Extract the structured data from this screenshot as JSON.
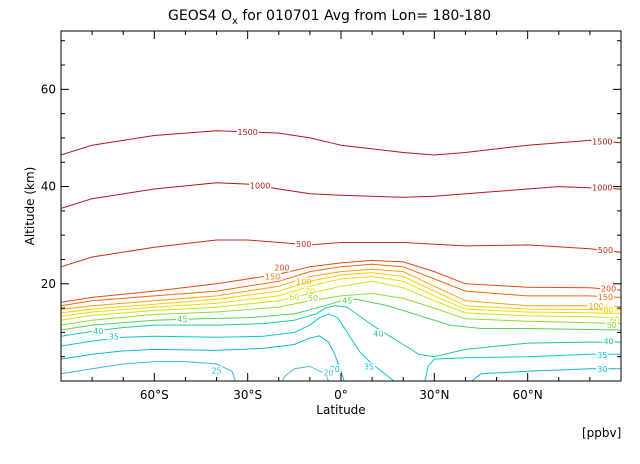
{
  "chart_data": {
    "type": "contour",
    "title_main": "GEOS4 O",
    "title_sub": "x",
    "title_rest": " for 010701 Avg from Lon= 180-180",
    "xlabel": "Latitude",
    "ylabel": "Altitude (km)",
    "units_note": "[ppbv]",
    "xlim": [
      -90,
      90
    ],
    "ylim": [
      0,
      72
    ],
    "x_ticks": [
      {
        "value": -60,
        "label": "60°S"
      },
      {
        "value": -30,
        "label": "30°S"
      },
      {
        "value": 0,
        "label": "0°"
      },
      {
        "value": 30,
        "label": "30°N"
      },
      {
        "value": 60,
        "label": "60°N"
      }
    ],
    "y_ticks": [
      {
        "value": 20,
        "label": "20"
      },
      {
        "value": 40,
        "label": "40"
      },
      {
        "value": 60,
        "label": "60"
      }
    ],
    "contours": [
      {
        "level": 1500,
        "color": "#b01818",
        "points": [
          [
            -90,
            46.5
          ],
          [
            -80,
            48.5
          ],
          [
            -60,
            50.5
          ],
          [
            -40,
            51.5
          ],
          [
            -20,
            51
          ],
          [
            -10,
            50
          ],
          [
            0,
            48.5
          ],
          [
            20,
            47
          ],
          [
            30,
            46.5
          ],
          [
            40,
            47
          ],
          [
            60,
            48.5
          ],
          [
            80,
            49.5
          ],
          [
            90,
            49
          ]
        ],
        "labels": [
          {
            "text": "1500",
            "x": -30,
            "y": 51.2
          },
          {
            "text": "1500",
            "x": 84,
            "y": 49.3
          }
        ]
      },
      {
        "level": 1000,
        "color": "#b01818",
        "points": [
          [
            -90,
            35.5
          ],
          [
            -80,
            37.5
          ],
          [
            -60,
            39.5
          ],
          [
            -40,
            40.8
          ],
          [
            -30,
            40.5
          ],
          [
            -10,
            38.5
          ],
          [
            0,
            38.2
          ],
          [
            20,
            37.8
          ],
          [
            30,
            38
          ],
          [
            50,
            39
          ],
          [
            70,
            40
          ],
          [
            90,
            39.5
          ]
        ],
        "labels": [
          {
            "text": "1000",
            "x": -26,
            "y": 40.2
          },
          {
            "text": "1000",
            "x": 84,
            "y": 39.8
          }
        ]
      },
      {
        "level": 500,
        "color": "#c83018",
        "points": [
          [
            -90,
            23.5
          ],
          [
            -80,
            25.5
          ],
          [
            -60,
            27.5
          ],
          [
            -40,
            29
          ],
          [
            -30,
            29
          ],
          [
            -10,
            28
          ],
          [
            0,
            28.5
          ],
          [
            20,
            28.5
          ],
          [
            40,
            27.8
          ],
          [
            60,
            28
          ],
          [
            80,
            27.2
          ],
          [
            90,
            26.5
          ]
        ],
        "labels": [
          {
            "text": "500",
            "x": -12,
            "y": 28.2
          },
          {
            "text": "500",
            "x": 85,
            "y": 27
          }
        ]
      },
      {
        "level": 200,
        "color": "#e04a12",
        "points": [
          [
            -90,
            16.2
          ],
          [
            -80,
            17.2
          ],
          [
            -60,
            18.5
          ],
          [
            -40,
            20
          ],
          [
            -20,
            22
          ],
          [
            -10,
            23.5
          ],
          [
            0,
            24.3
          ],
          [
            10,
            24.8
          ],
          [
            20,
            24.5
          ],
          [
            30,
            22.5
          ],
          [
            40,
            20
          ],
          [
            60,
            19.3
          ],
          [
            80,
            19.2
          ],
          [
            90,
            18.7
          ]
        ],
        "labels": [
          {
            "text": "200",
            "x": -19,
            "y": 23.3
          },
          {
            "text": "200",
            "x": 86,
            "y": 19
          }
        ]
      },
      {
        "level": 150,
        "color": "#ee6a10",
        "points": [
          [
            -90,
            15.5
          ],
          [
            -80,
            16.5
          ],
          [
            -60,
            17.5
          ],
          [
            -40,
            18.5
          ],
          [
            -20,
            20.5
          ],
          [
            -10,
            22.5
          ],
          [
            0,
            23.5
          ],
          [
            10,
            24
          ],
          [
            20,
            23.5
          ],
          [
            30,
            21
          ],
          [
            40,
            18.5
          ],
          [
            60,
            17.5
          ],
          [
            80,
            17.5
          ],
          [
            90,
            17.2
          ]
        ],
        "labels": [
          {
            "text": "150",
            "x": -22,
            "y": 21.5
          },
          {
            "text": "150",
            "x": 85,
            "y": 17.3
          }
        ]
      },
      {
        "level": 100,
        "color": "#f7a010",
        "points": [
          [
            -90,
            14.7
          ],
          [
            -80,
            15.5
          ],
          [
            -60,
            16.5
          ],
          [
            -40,
            17.5
          ],
          [
            -20,
            19.5
          ],
          [
            -10,
            21.5
          ],
          [
            0,
            22.5
          ],
          [
            10,
            23
          ],
          [
            20,
            22.5
          ],
          [
            30,
            19.5
          ],
          [
            40,
            16.5
          ],
          [
            60,
            15.5
          ],
          [
            80,
            15.5
          ],
          [
            90,
            15.3
          ]
        ],
        "labels": [
          {
            "text": "100",
            "x": -12,
            "y": 20.5
          },
          {
            "text": "100",
            "x": 82,
            "y": 15.4
          }
        ]
      },
      {
        "level": 80,
        "color": "#ffcc00",
        "points": [
          [
            -90,
            14
          ],
          [
            -80,
            14.8
          ],
          [
            -60,
            15.8
          ],
          [
            -40,
            16.8
          ],
          [
            -20,
            18.5
          ],
          [
            -10,
            20.5
          ],
          [
            0,
            21.8
          ],
          [
            10,
            22.3
          ],
          [
            20,
            21.5
          ],
          [
            30,
            18.5
          ],
          [
            40,
            15.5
          ],
          [
            60,
            14.8
          ],
          [
            80,
            14.7
          ],
          [
            90,
            14.6
          ]
        ],
        "labels": [
          {
            "text": "80",
            "x": 86,
            "y": 14.7
          }
        ]
      },
      {
        "level": 70,
        "color": "#eedd00",
        "points": [
          [
            -90,
            13.3
          ],
          [
            -80,
            14.2
          ],
          [
            -60,
            15.2
          ],
          [
            -40,
            16
          ],
          [
            -20,
            17.5
          ],
          [
            -10,
            19.5
          ],
          [
            0,
            21
          ],
          [
            10,
            21.5
          ],
          [
            20,
            20.5
          ],
          [
            30,
            17.5
          ],
          [
            40,
            14.8
          ],
          [
            60,
            14.2
          ],
          [
            80,
            14
          ],
          [
            90,
            13.9
          ]
        ],
        "labels": [
          {
            "text": "70",
            "x": -10,
            "y": 18.5
          }
        ]
      },
      {
        "level": 60,
        "color": "#c8e41a",
        "points": [
          [
            -90,
            12.5
          ],
          [
            -80,
            13.5
          ],
          [
            -60,
            14.5
          ],
          [
            -40,
            15.2
          ],
          [
            -20,
            16.5
          ],
          [
            -10,
            18
          ],
          [
            0,
            19.5
          ],
          [
            10,
            20.5
          ],
          [
            20,
            19.2
          ],
          [
            30,
            16.5
          ],
          [
            40,
            14
          ],
          [
            60,
            13.4
          ],
          [
            80,
            13.2
          ],
          [
            90,
            13
          ]
        ],
        "labels": [
          {
            "text": "60",
            "x": -15,
            "y": 17.3
          },
          {
            "text": "60",
            "x": 88,
            "y": 12.5
          }
        ]
      },
      {
        "level": 50,
        "color": "#90dc34",
        "points": [
          [
            -90,
            11.5
          ],
          [
            -80,
            12.5
          ],
          [
            -60,
            13.7
          ],
          [
            -40,
            14.2
          ],
          [
            -20,
            15.2
          ],
          [
            -10,
            16.5
          ],
          [
            0,
            17.5
          ],
          [
            10,
            18
          ],
          [
            20,
            17
          ],
          [
            30,
            15
          ],
          [
            40,
            12.8
          ],
          [
            60,
            12.3
          ],
          [
            80,
            12
          ],
          [
            90,
            11.8
          ]
        ],
        "labels": [
          {
            "text": "50",
            "x": -9,
            "y": 17.1
          },
          {
            "text": "50",
            "x": 87,
            "y": 11.5
          }
        ]
      },
      {
        "level": 45,
        "color": "#4ed25a",
        "points": [
          [
            -90,
            10.5
          ],
          [
            -80,
            11.5
          ],
          [
            -60,
            12.5
          ],
          [
            -45,
            12.8
          ],
          [
            -30,
            13
          ],
          [
            -15,
            13.8
          ],
          [
            -5,
            15.5
          ],
          [
            0,
            16.5
          ],
          [
            5,
            16.8
          ],
          [
            15,
            15.5
          ],
          [
            25,
            13.5
          ],
          [
            35,
            11.5
          ],
          [
            45,
            10.8
          ],
          [
            60,
            10.8
          ],
          [
            80,
            10.6
          ],
          [
            90,
            10.5
          ]
        ],
        "labels": [
          {
            "text": "45",
            "x": -51,
            "y": 12.8
          },
          {
            "text": "45",
            "x": 2,
            "y": 16.6
          }
        ]
      },
      {
        "level": 40,
        "color": "#1ec8a0",
        "points": [
          [
            -90,
            9.2
          ],
          [
            -80,
            10.2
          ],
          [
            -70,
            11
          ],
          [
            -60,
            11.5
          ],
          [
            -40,
            11.5
          ],
          [
            -25,
            11.8
          ],
          [
            -15,
            12.5
          ],
          [
            -8,
            13.8
          ],
          [
            -5,
            15
          ],
          [
            -2,
            15.5
          ],
          [
            2,
            15.2
          ],
          [
            5,
            13.8
          ],
          [
            10,
            11.5
          ],
          [
            15,
            9.5
          ],
          [
            20,
            7.5
          ],
          [
            25,
            5.5
          ],
          [
            30,
            5
          ],
          [
            40,
            6.5
          ],
          [
            60,
            7.8
          ],
          [
            80,
            8
          ],
          [
            90,
            8
          ]
        ],
        "labels": [
          {
            "text": "40",
            "x": -78,
            "y": 10.3
          },
          {
            "text": "40",
            "x": 12,
            "y": 9.8
          },
          {
            "text": "40",
            "x": 86,
            "y": 8.2
          }
        ]
      },
      {
        "level": 35,
        "color": "#0ac8d0",
        "points": [
          [
            -90,
            7.2
          ],
          [
            -80,
            8.2
          ],
          [
            -70,
            9
          ],
          [
            -60,
            9.2
          ],
          [
            -40,
            9
          ],
          [
            -25,
            9.2
          ],
          [
            -15,
            10
          ],
          [
            -10,
            11.5
          ],
          [
            -7,
            13
          ],
          [
            -4,
            13.8
          ],
          [
            -1,
            13
          ],
          [
            2,
            10
          ],
          [
            6,
            6
          ],
          [
            10,
            3.5
          ],
          [
            14,
            1.5
          ],
          [
            17,
            0
          ]
        ],
        "labels": [
          {
            "text": "35",
            "x": -73,
            "y": 9.2
          },
          {
            "text": "35",
            "x": 9,
            "y": 3
          }
        ]
      },
      {
        "level": 35,
        "color": "#0ac8d0",
        "points": [
          [
            27,
            0
          ],
          [
            28,
            3
          ],
          [
            30,
            4.5
          ],
          [
            40,
            4.8
          ],
          [
            60,
            5
          ],
          [
            80,
            5.5
          ],
          [
            90,
            5.5
          ]
        ],
        "labels": [
          {
            "text": "35",
            "x": 84,
            "y": 5.3
          }
        ]
      },
      {
        "level": 30,
        "color": "#12b4e0",
        "points": [
          [
            -90,
            4.5
          ],
          [
            -80,
            5.5
          ],
          [
            -70,
            6.2
          ],
          [
            -60,
            6.5
          ],
          [
            -40,
            6.3
          ],
          [
            -25,
            6.7
          ],
          [
            -15,
            7.5
          ],
          [
            -10,
            8.8
          ],
          [
            -7,
            9.3
          ],
          [
            -4,
            8
          ],
          [
            -2,
            5.5
          ],
          [
            0,
            2
          ],
          [
            1,
            0
          ]
        ],
        "labels": [
          {
            "text": "30",
            "x": -2,
            "y": 2.5
          }
        ]
      },
      {
        "level": 30,
        "color": "#12b4e0",
        "points": [
          [
            42,
            0
          ],
          [
            45,
            1.5
          ],
          [
            60,
            2
          ],
          [
            80,
            2.5
          ],
          [
            90,
            2.5
          ]
        ],
        "labels": [
          {
            "text": "30",
            "x": 84,
            "y": 2.5
          }
        ]
      },
      {
        "level": 25,
        "color": "#3cb4e6",
        "points": [
          [
            -90,
            1.5
          ],
          [
            -80,
            2.5
          ],
          [
            -70,
            3.5
          ],
          [
            -60,
            4
          ],
          [
            -50,
            4
          ],
          [
            -40,
            3.5
          ],
          [
            -35,
            2
          ],
          [
            -34,
            0
          ]
        ],
        "labels": [
          {
            "text": "25",
            "x": -40,
            "y": 2.2
          }
        ]
      },
      {
        "level": 20,
        "color": "#5ab4ea",
        "points": [
          [
            -4,
            0
          ],
          [
            -5,
            1.5
          ],
          [
            -10,
            3
          ],
          [
            -15,
            2.5
          ],
          [
            -18,
            1
          ],
          [
            -19,
            0
          ]
        ],
        "labels": [
          {
            "text": "20",
            "x": -4,
            "y": 1.8
          }
        ]
      }
    ]
  }
}
